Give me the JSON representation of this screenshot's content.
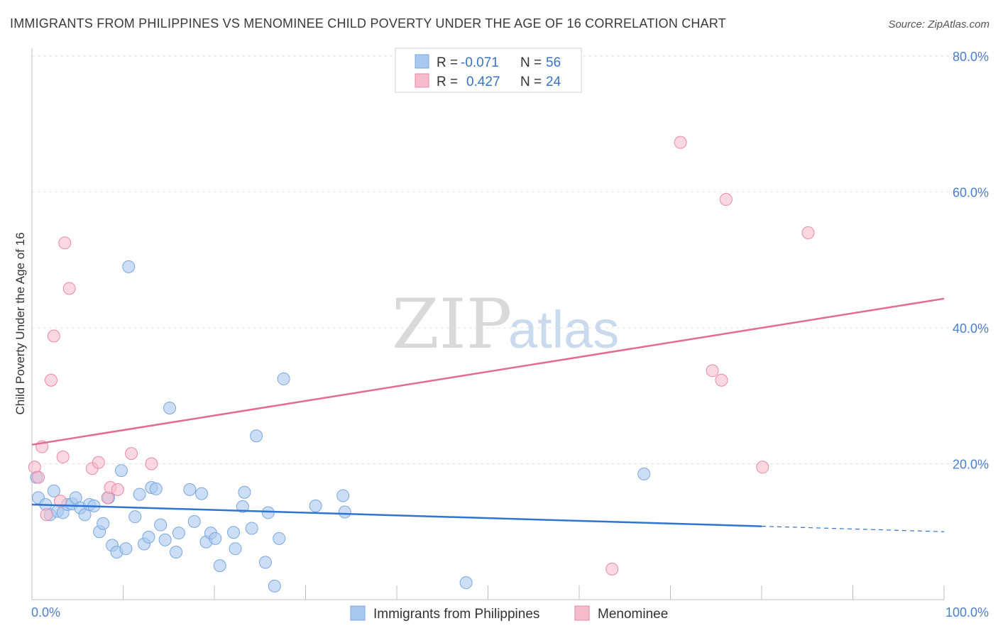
{
  "chart_data": {
    "type": "scatter",
    "title": "IMMIGRANTS FROM PHILIPPINES VS MENOMINEE CHILD POVERTY UNDER THE AGE OF 16 CORRELATION CHART",
    "source": "Source: ZipAtlas.com",
    "xlabel": "",
    "ylabel": "Child Poverty Under the Age of 16",
    "xlim": [
      0,
      100
    ],
    "ylim": [
      0,
      80
    ],
    "x_tick_labels": [
      "0.0%",
      "100.0%"
    ],
    "y_ticks": [
      20,
      40,
      60,
      80
    ],
    "y_tick_labels": [
      "20.0%",
      "40.0%",
      "60.0%",
      "80.0%"
    ],
    "watermark": {
      "zip": "ZIP",
      "atlas": "atlas"
    },
    "legend": {
      "rows": [
        {
          "r_label": "R =",
          "r_value": "-0.071",
          "n_label": "N =",
          "n_value": "56"
        },
        {
          "r_label": "R =",
          "r_value": "0.427",
          "n_label": "N =",
          "n_value": "24"
        }
      ]
    },
    "series": [
      {
        "name": "Immigrants from Philippines",
        "color": "#a9c8ef",
        "stroke": "#7aa7e0",
        "line_color": "#2f74d0",
        "trend": {
          "x0": 0,
          "y0": 14.0,
          "x1": 80,
          "y1": 10.8,
          "dash_to_x": 100,
          "dash_to_y": 10.0
        },
        "points": [
          [
            0.5,
            18.0
          ],
          [
            0.7,
            15.0
          ],
          [
            1.5,
            14.0
          ],
          [
            2.0,
            12.5
          ],
          [
            2.4,
            16.0
          ],
          [
            2.8,
            13.0
          ],
          [
            3.4,
            12.8
          ],
          [
            3.9,
            14.0
          ],
          [
            4.4,
            14.1
          ],
          [
            4.8,
            15.0
          ],
          [
            5.3,
            13.5
          ],
          [
            5.8,
            12.5
          ],
          [
            6.3,
            14.0
          ],
          [
            6.8,
            13.8
          ],
          [
            7.4,
            10.0
          ],
          [
            7.8,
            11.2
          ],
          [
            8.4,
            15.0
          ],
          [
            8.8,
            8.0
          ],
          [
            9.3,
            7.0
          ],
          [
            9.8,
            19.0
          ],
          [
            10.3,
            7.5
          ],
          [
            10.6,
            49.0
          ],
          [
            11.3,
            12.2
          ],
          [
            11.8,
            15.5
          ],
          [
            12.3,
            8.2
          ],
          [
            12.8,
            9.2
          ],
          [
            13.1,
            16.5
          ],
          [
            13.6,
            16.3
          ],
          [
            14.1,
            11.0
          ],
          [
            14.6,
            8.8
          ],
          [
            15.1,
            28.2
          ],
          [
            15.8,
            7.0
          ],
          [
            16.1,
            9.8
          ],
          [
            17.3,
            16.2
          ],
          [
            17.8,
            11.5
          ],
          [
            18.6,
            15.6
          ],
          [
            19.1,
            8.5
          ],
          [
            19.6,
            9.8
          ],
          [
            20.1,
            9.0
          ],
          [
            20.6,
            5.0
          ],
          [
            22.1,
            9.9
          ],
          [
            22.3,
            7.5
          ],
          [
            23.1,
            13.7
          ],
          [
            23.3,
            15.8
          ],
          [
            24.1,
            10.5
          ],
          [
            24.6,
            24.1
          ],
          [
            25.6,
            5.5
          ],
          [
            25.9,
            12.8
          ],
          [
            26.6,
            2.0
          ],
          [
            27.1,
            9.0
          ],
          [
            27.6,
            32.5
          ],
          [
            31.1,
            13.8
          ],
          [
            34.1,
            15.3
          ],
          [
            34.3,
            12.9
          ],
          [
            47.6,
            2.5
          ],
          [
            67.1,
            18.5
          ]
        ]
      },
      {
        "name": "Menominee",
        "color": "#f6bccd",
        "stroke": "#e98aa6",
        "line_color": "#e36a93",
        "trend": {
          "x0": 0,
          "y0": 22.8,
          "x1": 100,
          "y1": 44.3
        },
        "points": [
          [
            0.3,
            19.5
          ],
          [
            0.7,
            18.0
          ],
          [
            1.1,
            22.5
          ],
          [
            1.6,
            12.5
          ],
          [
            2.1,
            32.3
          ],
          [
            2.4,
            38.8
          ],
          [
            3.1,
            14.5
          ],
          [
            3.4,
            21.0
          ],
          [
            3.6,
            52.5
          ],
          [
            4.1,
            45.8
          ],
          [
            6.6,
            19.3
          ],
          [
            7.3,
            20.2
          ],
          [
            8.3,
            15.0
          ],
          [
            8.6,
            16.5
          ],
          [
            9.4,
            16.2
          ],
          [
            10.9,
            21.5
          ],
          [
            13.1,
            20.0
          ],
          [
            63.6,
            4.5
          ],
          [
            71.1,
            67.3
          ],
          [
            74.6,
            33.7
          ],
          [
            75.6,
            32.3
          ],
          [
            76.1,
            58.9
          ],
          [
            80.1,
            19.5
          ],
          [
            85.1,
            54.0
          ]
        ]
      }
    ]
  }
}
